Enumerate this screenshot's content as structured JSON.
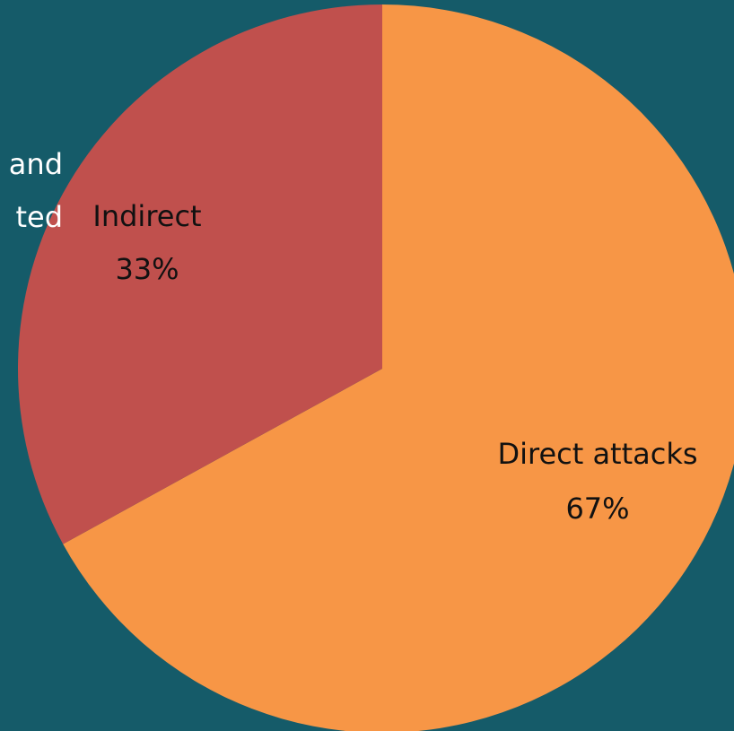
{
  "chart_data": {
    "type": "pie",
    "start_angle_deg": 0,
    "direction": "clockwise",
    "slices": [
      {
        "label": "Direct attacks",
        "value": 67,
        "value_label": "67%",
        "color": "#f79646"
      },
      {
        "label": "Indirect",
        "value": 33,
        "value_label": "33%",
        "color": "#c0504d"
      }
    ],
    "partial_labels": [
      "and",
      "ted"
    ]
  },
  "colors": {
    "background": "#155b69"
  }
}
